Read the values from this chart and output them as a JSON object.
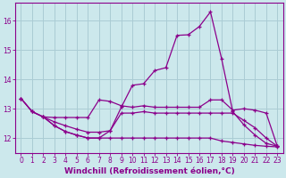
{
  "bg_color": "#cce8ec",
  "grid_color": "#aaccd4",
  "line_color": "#8b008b",
  "xlabel": "Windchill (Refroidissement éolien,°C)",
  "xlabel_fontsize": 6.5,
  "tick_fontsize": 5.5,
  "ylim": [
    11.5,
    16.6
  ],
  "xlim": [
    -0.5,
    23.5
  ],
  "yticks": [
    12,
    13,
    14,
    15,
    16
  ],
  "xticks": [
    0,
    1,
    2,
    3,
    4,
    5,
    6,
    7,
    8,
    9,
    10,
    11,
    12,
    13,
    14,
    15,
    16,
    17,
    18,
    19,
    20,
    21,
    22,
    23
  ],
  "curve_peak_x": [
    0,
    1,
    2,
    3,
    4,
    5,
    6,
    7,
    8,
    9,
    10,
    11,
    12,
    13,
    14,
    15,
    16,
    17,
    18,
    19,
    20,
    21,
    22,
    23
  ],
  "curve_peak_y": [
    13.35,
    12.9,
    12.72,
    12.42,
    12.22,
    12.1,
    12.0,
    12.0,
    12.25,
    13.05,
    13.8,
    13.85,
    14.3,
    14.4,
    15.5,
    15.52,
    15.8,
    16.3,
    14.7,
    12.9,
    12.45,
    12.1,
    11.82,
    11.72
  ],
  "curve_upper_flat_x": [
    0,
    1,
    2,
    3,
    4,
    5,
    6,
    7,
    8,
    9,
    10,
    11,
    12,
    13,
    14,
    15,
    16,
    17,
    18,
    19,
    20,
    21,
    22,
    23
  ],
  "curve_upper_flat_y": [
    13.35,
    12.9,
    12.72,
    12.7,
    12.7,
    12.7,
    12.7,
    13.3,
    13.25,
    13.1,
    13.05,
    13.1,
    13.05,
    13.05,
    13.05,
    13.05,
    13.05,
    13.3,
    13.3,
    12.95,
    13.0,
    12.95,
    12.85,
    11.72
  ],
  "curve_mid_x": [
    0,
    1,
    2,
    3,
    4,
    5,
    6,
    7,
    8,
    9,
    10,
    11,
    12,
    13,
    14,
    15,
    16,
    17,
    18,
    19,
    20,
    21,
    22,
    23
  ],
  "curve_mid_y": [
    13.35,
    12.9,
    12.72,
    12.55,
    12.42,
    12.3,
    12.2,
    12.2,
    12.25,
    12.85,
    12.85,
    12.9,
    12.85,
    12.85,
    12.85,
    12.85,
    12.85,
    12.85,
    12.85,
    12.85,
    12.6,
    12.35,
    12.0,
    11.72
  ],
  "curve_lower_x": [
    2,
    3,
    4,
    5,
    6,
    7,
    8,
    9,
    10,
    11,
    12,
    13,
    14,
    15,
    16,
    17,
    18,
    19,
    20,
    21,
    22,
    23
  ],
  "curve_lower_y": [
    12.72,
    12.42,
    12.22,
    12.1,
    12.0,
    12.0,
    12.0,
    12.0,
    12.0,
    12.0,
    12.0,
    12.0,
    12.0,
    12.0,
    12.0,
    12.0,
    11.9,
    11.85,
    11.8,
    11.75,
    11.72,
    11.7
  ]
}
